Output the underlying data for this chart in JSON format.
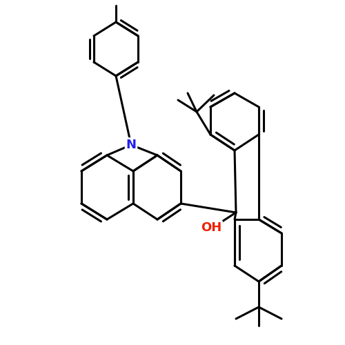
{
  "bg": "#ffffff",
  "bond_lw": 2.2,
  "font_size": 13,
  "atoms": {
    "N_color": "#2020ee",
    "OH_color": "#ee2000"
  }
}
